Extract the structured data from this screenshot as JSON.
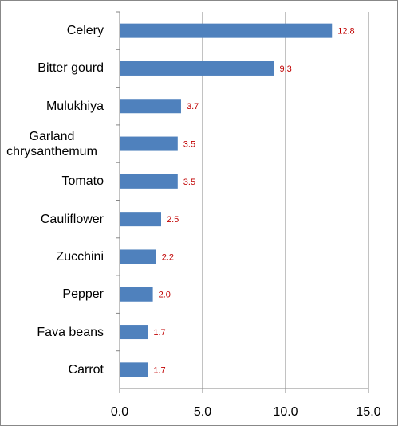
{
  "chart_data": {
    "type": "barh",
    "categories": [
      "Celery",
      "Bitter gourd",
      "Mulukhiya",
      "Garland chrysanthemum",
      "Tomato",
      "Cauliflower",
      "Zucchini",
      "Pepper",
      "Fava beans",
      "Carrot"
    ],
    "values": [
      12.8,
      9.3,
      3.7,
      3.5,
      3.5,
      2.5,
      2.2,
      2.0,
      1.7,
      1.7
    ],
    "value_labels": [
      "12.8",
      "9.3",
      "3.7",
      "3.5",
      "3.5",
      "2.5",
      "2.2",
      "2.0",
      "1.7",
      "1.7"
    ],
    "color": "#4f81bd",
    "value_label_color": "#c00000",
    "xlim": [
      0,
      15
    ],
    "xticks": [
      {
        "value": 0,
        "label": "0.0"
      },
      {
        "value": 5,
        "label": "5.0"
      },
      {
        "value": 10,
        "label": "10.0"
      },
      {
        "value": 15,
        "label": "15.0"
      }
    ],
    "grid": true
  }
}
